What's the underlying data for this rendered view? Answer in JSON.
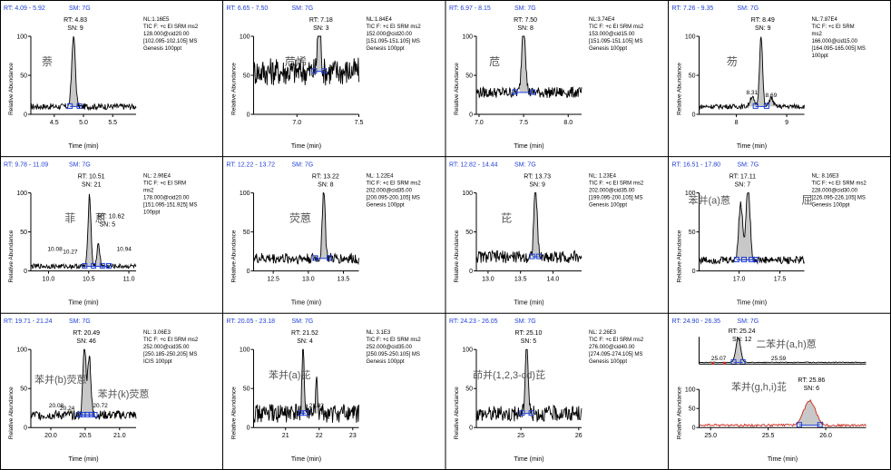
{
  "axis_title_x": "Time (min)",
  "axis_title_y": "Relative Abundance",
  "sm_label": "SM: 7G",
  "chart_data": [
    {
      "type": "line",
      "rt_header": "RT: 4.09 - 5.92",
      "peak_rt": "RT: 4.83",
      "peak_sn": "SN: 9",
      "nl_info": [
        "NL:1.16E5",
        "TIC F: +c EI SRM ms2",
        "128.000@cid20.00",
        "[102.095-102.105] MS",
        "Genesis 100ppt"
      ],
      "compound": "萘",
      "xlim": [
        4.1,
        5.9
      ],
      "xticks": [
        4.5,
        5.0,
        5.5
      ],
      "xtick_labels": [
        "4.5",
        "5.0",
        "5.5"
      ],
      "baseline": 10,
      "noise": 4,
      "peaks": [
        {
          "x": 4.83,
          "h": 100,
          "w": 0.03
        }
      ],
      "markers": [
        4.77,
        4.93
      ],
      "extra_labels": []
    },
    {
      "type": "line",
      "rt_header": "RT: 6.65 - 7.50",
      "peak_rt": "RT: 7.18",
      "peak_sn": "SN: 3",
      "nl_info": [
        "NL:1.84E4",
        "TIC F: +c EI SRM ms2",
        "152.000@cid20.00",
        "[151.095-151.105] MS",
        "Genesis 100ppt"
      ],
      "compound": "苊烯",
      "xlim": [
        6.65,
        7.5
      ],
      "xticks": [
        7.0,
        7.5
      ],
      "xtick_labels": [
        "7.0",
        "7.5"
      ],
      "baseline": 55,
      "noise": 18,
      "peaks": [
        {
          "x": 7.18,
          "h": 100,
          "w": 0.012
        }
      ],
      "markers": [
        7.14,
        7.22
      ],
      "extra_labels": []
    },
    {
      "type": "line",
      "rt_header": "RT: 6.97 - 8.15",
      "peak_rt": "RT: 7.50",
      "peak_sn": "SN: 8",
      "nl_info": [
        "NL:3.74E4",
        "TIC F: +c EI SRM ms2",
        "153.000@cid15.00",
        "[151.095-151.105] MS",
        "Genesis 100ppt"
      ],
      "compound": "苊",
      "xlim": [
        6.97,
        8.15
      ],
      "xticks": [
        7.0,
        7.5,
        8.0
      ],
      "xtick_labels": [
        "7.0",
        "7.5",
        "8.0"
      ],
      "baseline": 28,
      "noise": 7,
      "peaks": [
        {
          "x": 7.5,
          "h": 100,
          "w": 0.02
        }
      ],
      "markers": [
        7.4,
        7.6
      ],
      "extra_labels": []
    },
    {
      "type": "line",
      "rt_header": "RT: 7.26 - 9.35",
      "peak_rt": "RT: 8.49",
      "peak_sn": "SN: 9",
      "nl_info": [
        "NL:7.87E4",
        "TIC F: +c EI SRM",
        "ms2",
        "166.000@cid15.00",
        "[164.095-165.005] MS",
        "100ppt"
      ],
      "compound": "芴",
      "xlim": [
        7.26,
        9.35
      ],
      "xticks": [
        8,
        9
      ],
      "xtick_labels": [
        "8",
        "9"
      ],
      "baseline": 10,
      "noise": 3,
      "peaks": [
        {
          "x": 8.49,
          "h": 100,
          "w": 0.03
        },
        {
          "x": 8.31,
          "h": 14,
          "w": 0.04
        },
        {
          "x": 8.69,
          "h": 12,
          "w": 0.04
        }
      ],
      "markers": [
        8.38,
        8.6
      ],
      "extra_labels": [
        "8.31",
        "8.69"
      ]
    },
    {
      "type": "line",
      "rt_header": "RT: 9.78 - 11.09",
      "peak_rt": "RT: 10.51",
      "peak_sn": "SN: 21",
      "nl_info": [
        "NL: 2.96E4",
        "TIC F: +c EI SRM",
        "ms2",
        "178.000@cid20.00",
        "[151.095-151.925] MS",
        "100ppt"
      ],
      "compound": "菲",
      "compound2": "蒽",
      "peak2_rt": "RT: 10.62",
      "peak2_sn": "SN: 5",
      "xlim": [
        9.78,
        11.09
      ],
      "xticks": [
        10.0,
        10.5,
        11.0
      ],
      "xtick_labels": [
        "10.0",
        "10.5",
        "11.0"
      ],
      "baseline": 6,
      "noise": 3,
      "peaks": [
        {
          "x": 10.51,
          "h": 100,
          "w": 0.018
        },
        {
          "x": 10.62,
          "h": 30,
          "w": 0.018
        }
      ],
      "markers": [
        10.45,
        10.56,
        10.67,
        10.75
      ],
      "extra_labels": [
        "10.08",
        "10.27",
        "10.94"
      ]
    },
    {
      "type": "line",
      "rt_header": "RT: 12.22 - 13.72",
      "peak_rt": "RT: 13.22",
      "peak_sn": "SN: 8",
      "nl_info": [
        "NL: 1.22E4",
        "TIC F: +c EI SRM ms2",
        "202.000@cid35.00",
        "[200.095-200.105] MS",
        "Genesis 100ppt"
      ],
      "compound": "荧蒽",
      "xlim": [
        12.22,
        13.72
      ],
      "xticks": [
        12.5,
        13.0,
        13.5
      ],
      "xtick_labels": [
        "12.5",
        "13.0",
        "13.5"
      ],
      "baseline": 16,
      "noise": 7,
      "peaks": [
        {
          "x": 13.22,
          "h": 100,
          "w": 0.02
        }
      ],
      "markers": [
        13.1,
        13.3
      ],
      "extra_labels": []
    },
    {
      "type": "line",
      "rt_header": "RT: 12.82 - 14.44",
      "peak_rt": "RT: 13.73",
      "peak_sn": "SN: 9",
      "nl_info": [
        "NL: 1.23E4",
        "TIC F: +c EI SRM ms2",
        "202.000@cid35.00",
        "[199.095-200.105] MS",
        "Genesis 100ppt"
      ],
      "compound": "芘",
      "xlim": [
        12.82,
        14.44
      ],
      "xticks": [
        13.0,
        13.5,
        14.0
      ],
      "xtick_labels": [
        "13.0",
        "13.5",
        "14.0"
      ],
      "baseline": 18,
      "noise": 8,
      "peaks": [
        {
          "x": 13.73,
          "h": 100,
          "w": 0.025
        }
      ],
      "markers": [
        13.68,
        13.78
      ],
      "extra_labels": []
    },
    {
      "type": "line",
      "rt_header": "RT: 16.51 - 17.80",
      "peak_rt": "RT: 17.11",
      "peak_sn": "SN: 7",
      "nl_info": [
        "NL: 8.16E3",
        "TIC F: +c EI SRM ms2",
        "228.000@cid30.00",
        "[226.095-226.105] MS",
        "Genesis 100ppt"
      ],
      "compound": "苯并(a)蒽",
      "compound2": "屈",
      "xlim": [
        16.51,
        17.8
      ],
      "xticks": [
        17.0,
        17.5
      ],
      "xtick_labels": [
        "17.0",
        "17.5"
      ],
      "baseline": 14,
      "noise": 5,
      "peaks": [
        {
          "x": 17.02,
          "h": 78,
          "w": 0.025
        },
        {
          "x": 17.11,
          "h": 100,
          "w": 0.025
        }
      ],
      "markers": [
        16.97,
        17.06,
        17.15,
        17.2
      ],
      "extra_labels": []
    },
    {
      "type": "line",
      "rt_header": "RT: 19.71 - 21.24",
      "peak_rt": "RT: 20.49",
      "peak_sn": "SN: 46",
      "nl_info": [
        "NL: 3.06E3",
        "TIC F: +c EI SRM ms2",
        "252.000@cid35.00",
        "[250.185-250.205] MS",
        "ICIS 100ppt"
      ],
      "compound": "苯并(b)荧蒽",
      "compound2": "苯并(k)荧蒽",
      "xlim": [
        19.71,
        21.24
      ],
      "xticks": [
        20.0,
        20.5,
        21.0
      ],
      "xtick_labels": [
        "20.0",
        "20.5",
        "21.0"
      ],
      "baseline": 16,
      "noise": 6,
      "peaks": [
        {
          "x": 20.49,
          "h": 100,
          "w": 0.022
        },
        {
          "x": 20.56,
          "h": 85,
          "w": 0.022
        }
      ],
      "markers": [
        20.42,
        20.47,
        20.53,
        20.59,
        20.64
      ],
      "extra_labels": [
        "20.08",
        "20.24",
        "20.72"
      ]
    },
    {
      "type": "line",
      "rt_header": "RT: 20.05 - 23.18",
      "peak_rt": "RT: 21.52",
      "peak_sn": "SN: 4",
      "nl_info": [
        "NL: 3.1E3",
        "TIC F: +c EI SRM ms2",
        "252.000@cid35.00",
        "[250.095-250.105] MS",
        "Genesis 100ppt"
      ],
      "compound": "苯并(a)芘",
      "xlim": [
        20.05,
        23.18
      ],
      "xticks": [
        21,
        22,
        23
      ],
      "xtick_labels": [
        "21",
        "22",
        "23"
      ],
      "baseline": 18,
      "noise": 12,
      "peaks": [
        {
          "x": 21.52,
          "h": 100,
          "w": 0.03
        },
        {
          "x": 21.92,
          "h": 40,
          "w": 0.03
        }
      ],
      "markers": [
        21.45,
        21.6
      ],
      "extra_labels": [
        "21.92"
      ]
    },
    {
      "type": "line",
      "rt_header": "RT: 24.23 - 26.05",
      "peak_rt": "RT: 25.10",
      "peak_sn": "SN: 5",
      "nl_info": [
        "NL: 2.26E3",
        "TIC F: +c EI SRM ms2",
        "276.000@cid40.00",
        "[274.095-274.105] MS",
        "Genesis 100ppt"
      ],
      "compound": "茚并(1,2,3-cd)芘",
      "xlim": [
        24.23,
        26.05
      ],
      "xticks": [
        25,
        26
      ],
      "xtick_labels": [
        "25",
        "26"
      ],
      "baseline": 18,
      "noise": 10,
      "peaks": [
        {
          "x": 25.1,
          "h": 100,
          "w": 0.025
        }
      ],
      "markers": [
        25.02,
        25.18
      ],
      "extra_labels": []
    },
    {
      "type": "line",
      "rt_header": "RT: 24.90 - 26.35",
      "sm_text": "SM: 7G",
      "xlim": [
        24.9,
        26.35
      ],
      "xticks": [
        25.0,
        25.5,
        26.0
      ],
      "xtick_labels": [
        "25.0",
        "25.5",
        "26.0"
      ],
      "sub_top": {
        "peak_rt": "RT: 25.24",
        "peak_sn": "SN: 12",
        "compound": "二苯并(a,h)蒽",
        "labels": [
          "25.07",
          "25.59"
        ]
      },
      "sub_bottom": {
        "peak_rt": "RT: 25.86",
        "peak_sn": "SN: 6",
        "compound": "苯并(g,h,i)苝"
      }
    }
  ],
  "colors": {
    "line": "#000000",
    "fill": "#c8c8c8",
    "marker": "#1f3fd6",
    "header_blue": "#1f3fd6",
    "red": "#cc2a1e",
    "chinese": "#555555"
  }
}
